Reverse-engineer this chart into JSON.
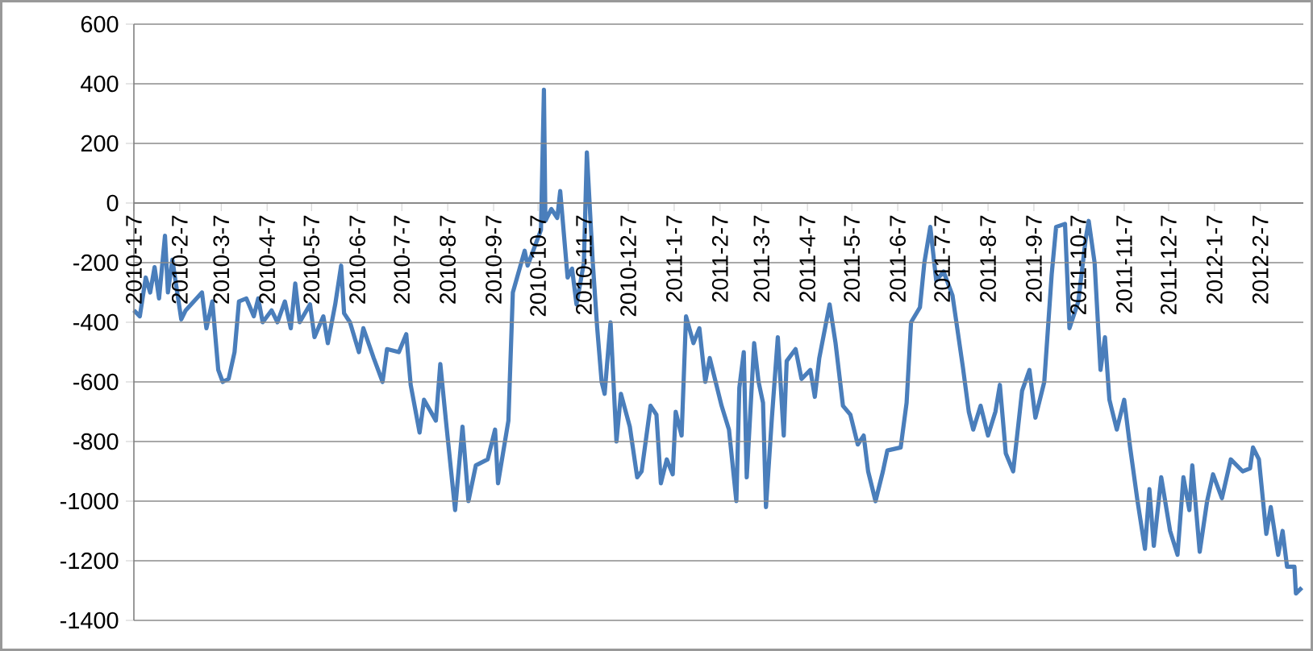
{
  "chart_data": {
    "type": "line",
    "color": "#4a7ebb",
    "grid": "y",
    "marker": "none",
    "line_style": "solid",
    "xlim": [
      "2010-01-07",
      "2012-03-07"
    ],
    "ylim": [
      -1400,
      600
    ],
    "yticks": [
      -1400,
      -1200,
      -1000,
      -800,
      -600,
      -400,
      -200,
      0,
      200,
      400,
      600
    ],
    "xticks": [
      {
        "value": "2010-01-07",
        "label": "2010-1-7"
      },
      {
        "value": "2010-02-07",
        "label": "2010-2-7"
      },
      {
        "value": "2010-03-07",
        "label": "2010-3-7"
      },
      {
        "value": "2010-04-07",
        "label": "2010-4-7"
      },
      {
        "value": "2010-05-07",
        "label": "2010-5-7"
      },
      {
        "value": "2010-06-07",
        "label": "2010-6-7"
      },
      {
        "value": "2010-07-07",
        "label": "2010-7-7"
      },
      {
        "value": "2010-08-07",
        "label": "2010-8-7"
      },
      {
        "value": "2010-09-07",
        "label": "2010-9-7"
      },
      {
        "value": "2010-10-07",
        "label": "2010-10-7"
      },
      {
        "value": "2010-11-07",
        "label": "2010-11-7"
      },
      {
        "value": "2010-12-07",
        "label": "2010-12-7"
      },
      {
        "value": "2011-01-07",
        "label": "2011-1-7"
      },
      {
        "value": "2011-02-07",
        "label": "2011-2-7"
      },
      {
        "value": "2011-03-07",
        "label": "2011-3-7"
      },
      {
        "value": "2011-04-07",
        "label": "2011-4-7"
      },
      {
        "value": "2011-05-07",
        "label": "2011-5-7"
      },
      {
        "value": "2011-06-07",
        "label": "2011-6-7"
      },
      {
        "value": "2011-07-07",
        "label": "2011-7-7"
      },
      {
        "value": "2011-08-07",
        "label": "2011-8-7"
      },
      {
        "value": "2011-09-07",
        "label": "2011-9-7"
      },
      {
        "value": "2011-10-07",
        "label": "2011-10-7"
      },
      {
        "value": "2011-11-07",
        "label": "2011-11-7"
      },
      {
        "value": "2011-12-07",
        "label": "2011-12-7"
      },
      {
        "value": "2012-01-07",
        "label": "2012-1-7"
      },
      {
        "value": "2012-02-07",
        "label": "2012-2-7"
      }
    ],
    "x": [
      "2010-01-07",
      "2010-01-11",
      "2010-01-15",
      "2010-01-18",
      "2010-01-21",
      "2010-01-24",
      "2010-01-28",
      "2010-01-30",
      "2010-02-02",
      "2010-02-08",
      "2010-02-11",
      "2010-02-22",
      "2010-02-25",
      "2010-03-01",
      "2010-03-05",
      "2010-03-08",
      "2010-03-12",
      "2010-03-16",
      "2010-03-19",
      "2010-03-24",
      "2010-03-29",
      "2010-04-01",
      "2010-04-04",
      "2010-04-10",
      "2010-04-14",
      "2010-04-19",
      "2010-04-23",
      "2010-04-26",
      "2010-04-29",
      "2010-05-06",
      "2010-05-09",
      "2010-05-15",
      "2010-05-18",
      "2010-05-23",
      "2010-05-27",
      "2010-05-29",
      "2010-06-02",
      "2010-06-08",
      "2010-06-11",
      "2010-06-18",
      "2010-06-24",
      "2010-06-27",
      "2010-07-05",
      "2010-07-10",
      "2010-07-13",
      "2010-07-19",
      "2010-07-22",
      "2010-07-30",
      "2010-08-02",
      "2010-08-06",
      "2010-08-12",
      "2010-08-17",
      "2010-08-21",
      "2010-08-26",
      "2010-09-03",
      "2010-09-08",
      "2010-09-10",
      "2010-09-17",
      "2010-09-20",
      "2010-09-28",
      "2010-09-30",
      "2010-10-09",
      "2010-10-11",
      "2010-10-12",
      "2010-10-16",
      "2010-10-20",
      "2010-10-22",
      "2010-10-27",
      "2010-10-30",
      "2010-11-02",
      "2010-11-07",
      "2010-11-09",
      "2010-11-13",
      "2010-11-16",
      "2010-11-19",
      "2010-11-21",
      "2010-11-25",
      "2010-11-29",
      "2010-12-02",
      "2010-12-08",
      "2010-12-13",
      "2010-12-16",
      "2010-12-22",
      "2010-12-26",
      "2010-12-29",
      "2011-01-02",
      "2011-01-06",
      "2011-01-08",
      "2011-01-12",
      "2011-01-15",
      "2011-01-20",
      "2011-01-24",
      "2011-01-28",
      "2011-01-31",
      "2011-02-08",
      "2011-02-13",
      "2011-02-18",
      "2011-02-20",
      "2011-02-23",
      "2011-02-25",
      "2011-03-02",
      "2011-03-05",
      "2011-03-08",
      "2011-03-10",
      "2011-03-14",
      "2011-03-18",
      "2011-03-22",
      "2011-03-24",
      "2011-03-30",
      "2011-04-03",
      "2011-04-09",
      "2011-04-12",
      "2011-04-15",
      "2011-04-22",
      "2011-04-26",
      "2011-05-01",
      "2011-05-06",
      "2011-05-11",
      "2011-05-15",
      "2011-05-18",
      "2011-05-23",
      "2011-05-28",
      "2011-05-31",
      "2011-06-09",
      "2011-06-13",
      "2011-06-16",
      "2011-06-22",
      "2011-06-25",
      "2011-06-29",
      "2011-07-03",
      "2011-07-08",
      "2011-07-14",
      "2011-07-21",
      "2011-07-25",
      "2011-07-28",
      "2011-08-02",
      "2011-08-07",
      "2011-08-12",
      "2011-08-15",
      "2011-08-19",
      "2011-08-24",
      "2011-08-30",
      "2011-09-04",
      "2011-09-08",
      "2011-09-14",
      "2011-09-19",
      "2011-09-22",
      "2011-09-28",
      "2011-10-01",
      "2011-10-07",
      "2011-10-12",
      "2011-10-14",
      "2011-10-18",
      "2011-10-22",
      "2011-10-25",
      "2011-10-28",
      "2011-11-02",
      "2011-11-07",
      "2011-11-11",
      "2011-11-16",
      "2011-11-21",
      "2011-11-24",
      "2011-11-27",
      "2011-12-02",
      "2011-12-08",
      "2011-12-13",
      "2011-12-17",
      "2011-12-21",
      "2011-12-23",
      "2011-12-28",
      "2012-01-02",
      "2012-01-06",
      "2012-01-12",
      "2012-01-18",
      "2012-01-26",
      "2012-01-31",
      "2012-02-02",
      "2012-02-06",
      "2012-02-11",
      "2012-02-14",
      "2012-02-19",
      "2012-02-22",
      "2012-02-25",
      "2012-03-01",
      "2012-03-02",
      "2012-03-06"
    ],
    "values": [
      -360,
      -380,
      -250,
      -300,
      -215,
      -320,
      -110,
      -300,
      -190,
      -390,
      -360,
      -300,
      -420,
      -330,
      -560,
      -600,
      -590,
      -500,
      -330,
      -320,
      -380,
      -320,
      -400,
      -360,
      -400,
      -330,
      -420,
      -270,
      -400,
      -340,
      -450,
      -380,
      -470,
      -340,
      -210,
      -370,
      -400,
      -500,
      -420,
      -520,
      -600,
      -490,
      -500,
      -440,
      -610,
      -770,
      -660,
      -730,
      -540,
      -740,
      -1030,
      -750,
      -1000,
      -880,
      -860,
      -760,
      -940,
      -730,
      -300,
      -160,
      -210,
      -90,
      380,
      -60,
      -20,
      -50,
      40,
      -250,
      -220,
      -340,
      -200,
      170,
      -200,
      -420,
      -600,
      -640,
      -400,
      -800,
      -640,
      -750,
      -920,
      -900,
      -680,
      -710,
      -940,
      -860,
      -910,
      -700,
      -780,
      -380,
      -470,
      -420,
      -600,
      -520,
      -680,
      -760,
      -1000,
      -620,
      -500,
      -920,
      -470,
      -600,
      -670,
      -1020,
      -720,
      -450,
      -780,
      -530,
      -490,
      -590,
      -560,
      -650,
      -520,
      -340,
      -470,
      -680,
      -710,
      -810,
      -780,
      -900,
      -1000,
      -900,
      -830,
      -820,
      -670,
      -400,
      -350,
      -200,
      -80,
      -260,
      -230,
      -310,
      -550,
      -700,
      -760,
      -680,
      -780,
      -700,
      -610,
      -840,
      -900,
      -630,
      -560,
      -720,
      -600,
      -240,
      -80,
      -70,
      -420,
      -330,
      -120,
      -60,
      -200,
      -560,
      -450,
      -660,
      -760,
      -660,
      -820,
      -1000,
      -1160,
      -960,
      -1150,
      -920,
      -1100,
      -1180,
      -920,
      -1030,
      -880,
      -1170,
      -1000,
      -910,
      -990,
      -860,
      -900,
      -890,
      -820,
      -860,
      -1110,
      -1020,
      -1180,
      -1100,
      -1220,
      -1220,
      -1310,
      -1290
    ]
  }
}
